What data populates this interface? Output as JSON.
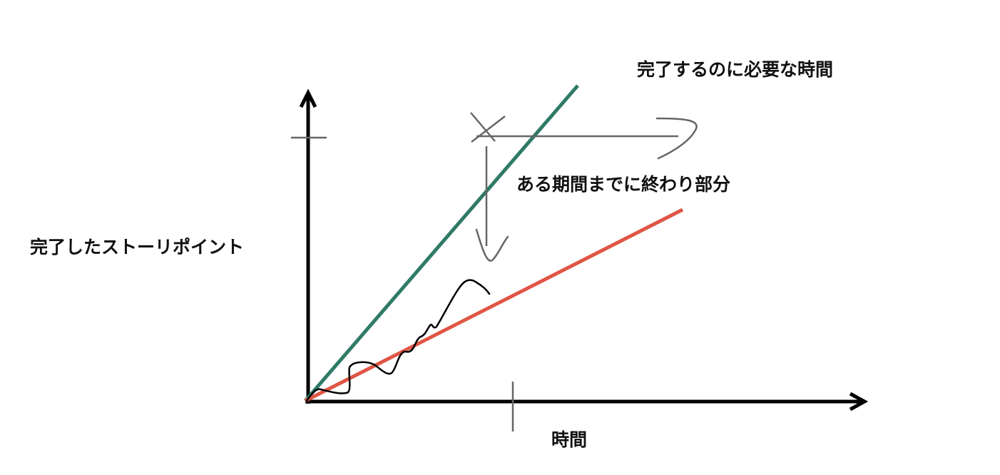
{
  "labels": {
    "time_to_complete": "完了するのに必要な時間",
    "portion_done_by_period": "ある期間までに終わり部分",
    "y_axis": "完了したストーリポイント",
    "x_axis": "時間"
  },
  "colors": {
    "axes": "#000000",
    "required_pace_line": "#2f7a67",
    "actual_pace_line": "#e05545",
    "annotations": "#666666",
    "progress_scribble": "#000000"
  }
}
